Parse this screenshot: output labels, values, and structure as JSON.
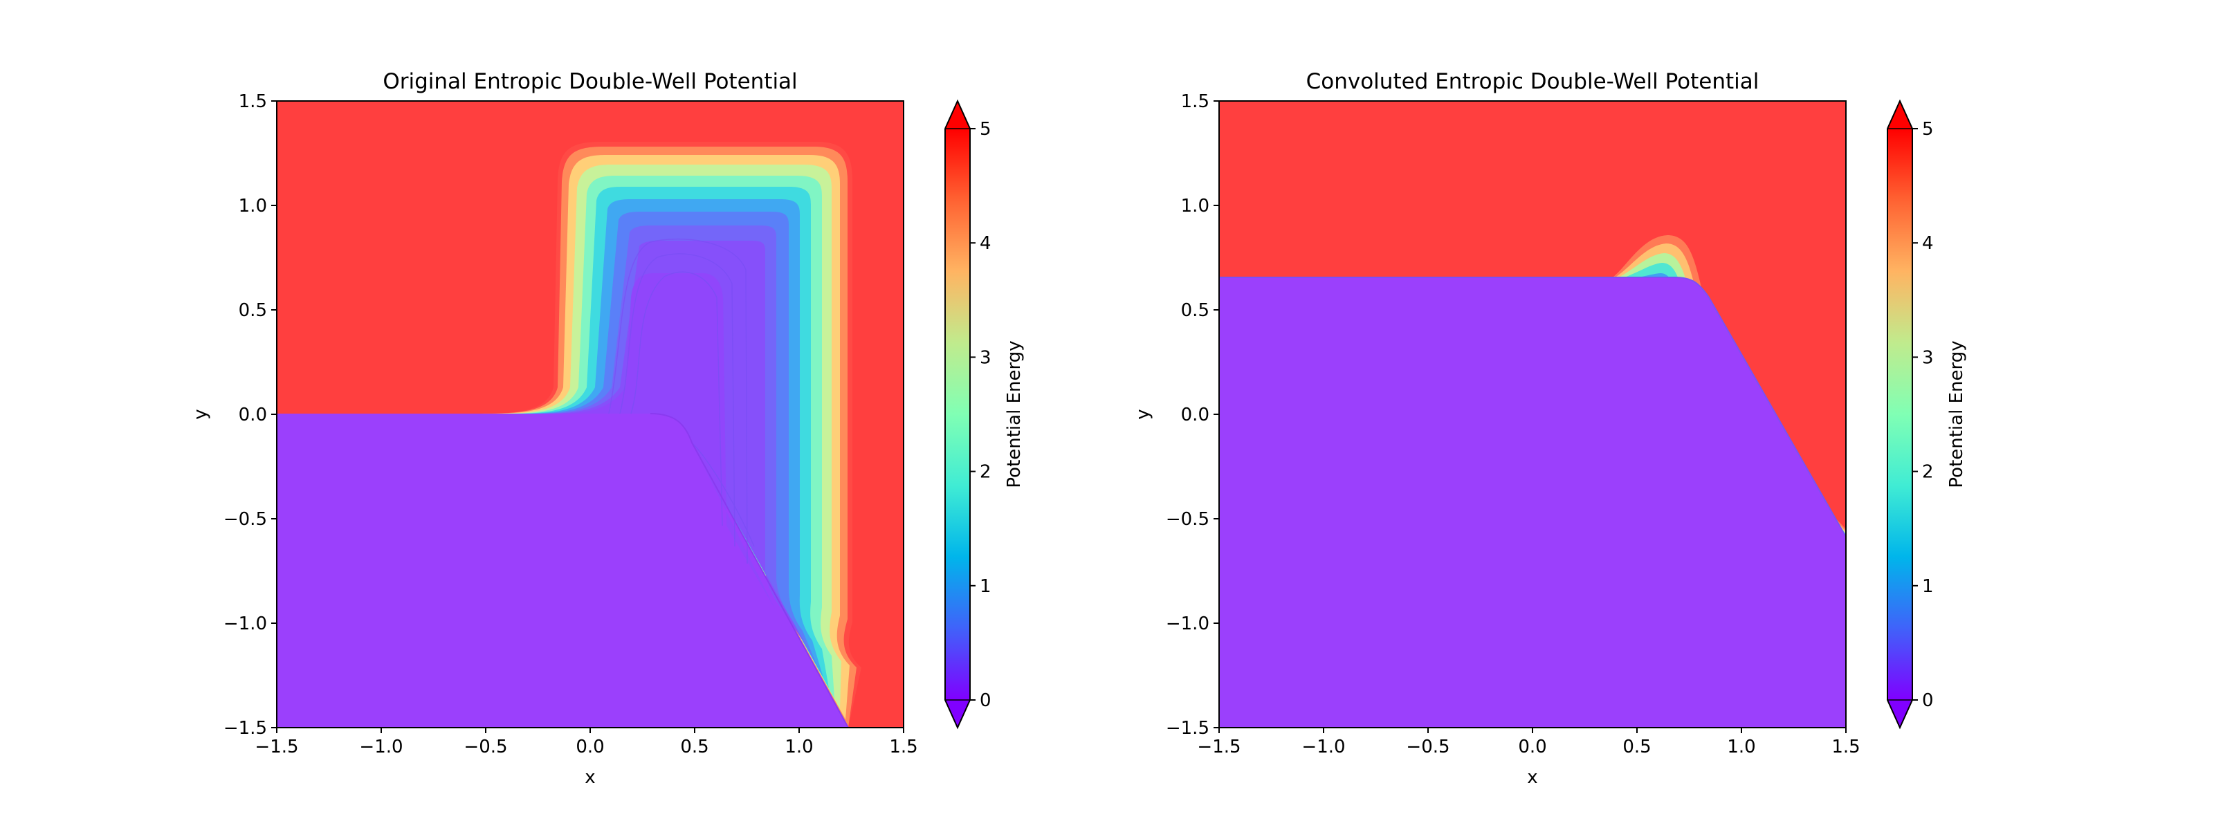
{
  "chart_data": [
    {
      "type": "heatmap",
      "title": "Original Entropic Double-Well Potential",
      "xlabel": "x",
      "ylabel": "y",
      "xlim": [
        -1.5,
        1.5
      ],
      "ylim": [
        -1.5,
        1.5
      ],
      "xticks": [
        "−1.5",
        "−1.0",
        "−0.5",
        "0.0",
        "0.5",
        "1.0",
        "1.5"
      ],
      "yticks": [
        "−1.5",
        "−1.0",
        "−0.5",
        "0.0",
        "0.5",
        "1.0",
        "1.5"
      ],
      "colorbar": {
        "label": "Potential Energy",
        "range": [
          0,
          5
        ],
        "ticks": [
          "0",
          "1",
          "2",
          "3",
          "4",
          "5"
        ],
        "extend": "both",
        "colormap": "rainbow"
      },
      "regions": {
        "low_region": "y < 0 to the left of the diagonal channel wall (≈0 energy, purple)",
        "channel": "U-shaped valley x ≈ 0.0 to 1.25, y up to ≈ 1.28, filled with rising contours",
        "wall": "diagonal wall from (0.45, 0.0) down to (1.25, -1.5)",
        "high_region": "red (≥5) outside the channel"
      },
      "colors": {
        "low": "#9b40fc",
        "high": "#ff3f3f"
      }
    },
    {
      "type": "heatmap",
      "title": "Convoluted Entropic Double-Well Potential",
      "xlabel": "x",
      "ylabel": "y",
      "xlim": [
        -1.5,
        1.5
      ],
      "ylim": [
        -1.5,
        1.5
      ],
      "xticks": [
        "−1.5",
        "−1.0",
        "−0.5",
        "0.0",
        "0.5",
        "1.0",
        "1.5"
      ],
      "yticks": [
        "−1.5",
        "−1.0",
        "−0.5",
        "0.0",
        "0.5",
        "1.0",
        "1.5"
      ],
      "colorbar": {
        "label": "Potential Energy",
        "range": [
          0,
          5
        ],
        "ticks": [
          "0",
          "1",
          "2",
          "3",
          "4",
          "5"
        ],
        "extend": "both",
        "colormap": "rainbow"
      },
      "regions": {
        "boundary": "flat at y ≈ 0.63 for x ≤ 0.45, then descending to y ≈ -0.55 at x = 1.5",
        "bump": "small bump peaking at y ≈ 0.84 near x ≈ 0.67",
        "low_region": "purple below the boundary",
        "high_region": "red above the boundary"
      },
      "colors": {
        "low": "#9b40fc",
        "high": "#ff3f3f"
      }
    }
  ]
}
